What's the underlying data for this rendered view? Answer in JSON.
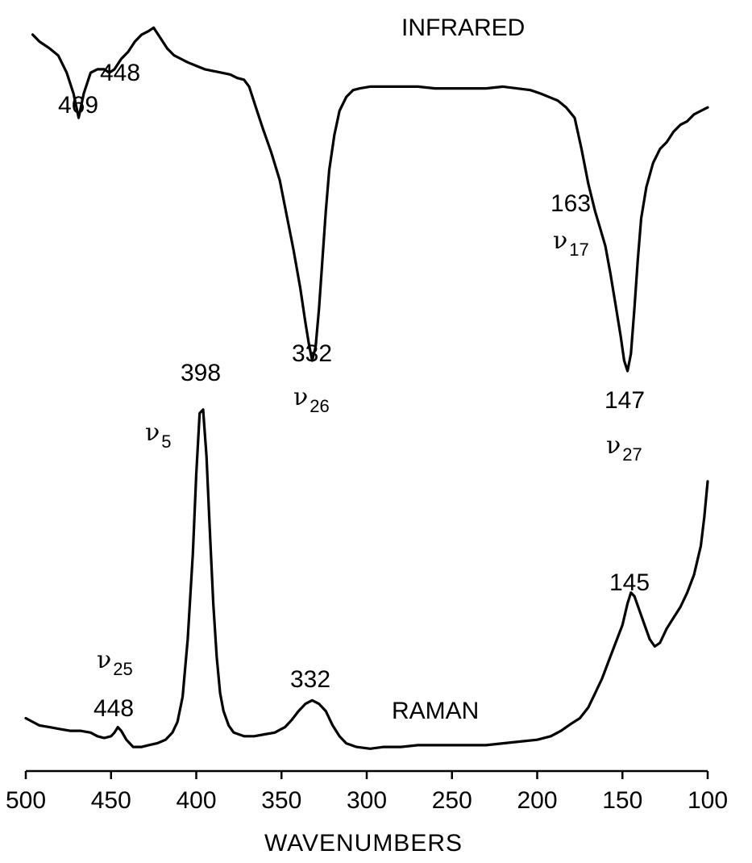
{
  "chart_data": {
    "type": "line",
    "title": "",
    "xlabel": "WAVENUMBERS",
    "ylabel": "",
    "xlim": [
      500,
      100
    ],
    "x_reversed": true,
    "grid": false,
    "x_ticks": [
      500,
      450,
      400,
      350,
      300,
      250,
      200,
      150,
      100
    ],
    "x_tick_labels": [
      "500",
      "450",
      "400",
      "350",
      "300",
      "250",
      "200",
      "150",
      "100"
    ],
    "series": [
      {
        "name": "INFRARED",
        "y_range": [
          0,
          1
        ],
        "note": "transmission trace, dips are absorption bands",
        "points": [
          [
            496,
            0.97
          ],
          [
            492,
            0.95
          ],
          [
            486,
            0.93
          ],
          [
            481,
            0.91
          ],
          [
            476,
            0.86
          ],
          [
            472,
            0.8
          ],
          [
            469,
            0.73
          ],
          [
            466,
            0.8
          ],
          [
            462,
            0.86
          ],
          [
            458,
            0.87
          ],
          [
            454,
            0.87
          ],
          [
            451,
            0.86
          ],
          [
            448,
            0.87
          ],
          [
            444,
            0.9
          ],
          [
            440,
            0.92
          ],
          [
            436,
            0.95
          ],
          [
            432,
            0.97
          ],
          [
            428,
            0.98
          ],
          [
            425,
            0.99
          ],
          [
            421,
            0.96
          ],
          [
            417,
            0.93
          ],
          [
            413,
            0.91
          ],
          [
            409,
            0.9
          ],
          [
            405,
            0.89
          ],
          [
            400,
            0.88
          ],
          [
            395,
            0.87
          ],
          [
            390,
            0.865
          ],
          [
            385,
            0.86
          ],
          [
            380,
            0.855
          ],
          [
            376,
            0.845
          ],
          [
            372,
            0.84
          ],
          [
            369,
            0.82
          ],
          [
            365,
            0.76
          ],
          [
            361,
            0.7
          ],
          [
            356,
            0.63
          ],
          [
            351,
            0.55
          ],
          [
            347,
            0.45
          ],
          [
            343,
            0.35
          ],
          [
            339,
            0.24
          ],
          [
            336,
            0.14
          ],
          [
            334,
            0.08
          ],
          [
            332,
            0.03
          ],
          [
            330,
            0.07
          ],
          [
            328,
            0.18
          ],
          [
            326,
            0.32
          ],
          [
            324,
            0.46
          ],
          [
            322,
            0.58
          ],
          [
            319,
            0.68
          ],
          [
            316,
            0.75
          ],
          [
            312,
            0.79
          ],
          [
            308,
            0.81
          ],
          [
            304,
            0.815
          ],
          [
            298,
            0.82
          ],
          [
            290,
            0.82
          ],
          [
            280,
            0.82
          ],
          [
            270,
            0.82
          ],
          [
            260,
            0.815
          ],
          [
            250,
            0.815
          ],
          [
            240,
            0.815
          ],
          [
            230,
            0.815
          ],
          [
            220,
            0.82
          ],
          [
            212,
            0.815
          ],
          [
            204,
            0.81
          ],
          [
            198,
            0.8
          ],
          [
            193,
            0.79
          ],
          [
            188,
            0.78
          ],
          [
            183,
            0.76
          ],
          [
            178,
            0.73
          ],
          [
            174,
            0.64
          ],
          [
            170,
            0.54
          ],
          [
            166,
            0.46
          ],
          [
            163,
            0.41
          ],
          [
            160,
            0.36
          ],
          [
            157,
            0.28
          ],
          [
            154,
            0.19
          ],
          [
            151,
            0.1
          ],
          [
            149,
            0.03
          ],
          [
            147,
            0.0
          ],
          [
            145,
            0.05
          ],
          [
            143,
            0.18
          ],
          [
            141,
            0.32
          ],
          [
            139,
            0.44
          ],
          [
            136,
            0.53
          ],
          [
            132,
            0.6
          ],
          [
            128,
            0.64
          ],
          [
            124,
            0.66
          ],
          [
            120,
            0.69
          ],
          [
            116,
            0.71
          ],
          [
            112,
            0.72
          ],
          [
            108,
            0.74
          ],
          [
            104,
            0.75
          ],
          [
            100,
            0.76
          ]
        ]
      },
      {
        "name": "RAMAN",
        "y_range": [
          0,
          1
        ],
        "note": "scattering intensity trace, peaks are Raman bands",
        "points": [
          [
            500,
            0.1
          ],
          [
            496,
            0.09
          ],
          [
            492,
            0.08
          ],
          [
            486,
            0.075
          ],
          [
            480,
            0.07
          ],
          [
            474,
            0.065
          ],
          [
            468,
            0.065
          ],
          [
            462,
            0.06
          ],
          [
            458,
            0.05
          ],
          [
            454,
            0.045
          ],
          [
            450,
            0.05
          ],
          [
            448,
            0.06
          ],
          [
            446,
            0.075
          ],
          [
            444,
            0.065
          ],
          [
            441,
            0.04
          ],
          [
            437,
            0.02
          ],
          [
            432,
            0.02
          ],
          [
            428,
            0.025
          ],
          [
            423,
            0.03
          ],
          [
            418,
            0.04
          ],
          [
            414,
            0.06
          ],
          [
            411,
            0.09
          ],
          [
            408,
            0.16
          ],
          [
            405,
            0.32
          ],
          [
            402,
            0.56
          ],
          [
            400,
            0.78
          ],
          [
            398,
            0.95
          ],
          [
            396,
            0.96
          ],
          [
            394,
            0.83
          ],
          [
            392,
            0.62
          ],
          [
            390,
            0.42
          ],
          [
            388,
            0.27
          ],
          [
            386,
            0.17
          ],
          [
            384,
            0.12
          ],
          [
            381,
            0.08
          ],
          [
            378,
            0.06
          ],
          [
            372,
            0.05
          ],
          [
            366,
            0.05
          ],
          [
            360,
            0.055
          ],
          [
            354,
            0.06
          ],
          [
            348,
            0.075
          ],
          [
            344,
            0.095
          ],
          [
            340,
            0.12
          ],
          [
            336,
            0.14
          ],
          [
            332,
            0.15
          ],
          [
            328,
            0.14
          ],
          [
            324,
            0.12
          ],
          [
            320,
            0.08
          ],
          [
            316,
            0.05
          ],
          [
            312,
            0.03
          ],
          [
            306,
            0.02
          ],
          [
            298,
            0.015
          ],
          [
            290,
            0.02
          ],
          [
            280,
            0.02
          ],
          [
            270,
            0.025
          ],
          [
            260,
            0.025
          ],
          [
            250,
            0.025
          ],
          [
            240,
            0.025
          ],
          [
            230,
            0.025
          ],
          [
            220,
            0.03
          ],
          [
            210,
            0.035
          ],
          [
            200,
            0.04
          ],
          [
            192,
            0.05
          ],
          [
            186,
            0.065
          ],
          [
            180,
            0.085
          ],
          [
            175,
            0.1
          ],
          [
            170,
            0.13
          ],
          [
            166,
            0.17
          ],
          [
            162,
            0.21
          ],
          [
            158,
            0.26
          ],
          [
            154,
            0.31
          ],
          [
            150,
            0.36
          ],
          [
            147,
            0.42
          ],
          [
            145,
            0.45
          ],
          [
            143,
            0.44
          ],
          [
            140,
            0.4
          ],
          [
            137,
            0.36
          ],
          [
            134,
            0.32
          ],
          [
            131,
            0.3
          ],
          [
            128,
            0.31
          ],
          [
            124,
            0.35
          ],
          [
            120,
            0.38
          ],
          [
            116,
            0.41
          ],
          [
            112,
            0.45
          ],
          [
            108,
            0.5
          ],
          [
            104,
            0.58
          ],
          [
            102,
            0.66
          ],
          [
            100,
            0.76
          ]
        ]
      }
    ],
    "annotations": [
      {
        "id": "ir-469",
        "text": "469",
        "series": "INFRARED"
      },
      {
        "id": "ir-448",
        "text": "448",
        "series": "INFRARED"
      },
      {
        "id": "ir-332",
        "text": "332",
        "series": "INFRARED"
      },
      {
        "id": "ir-nu26",
        "text": "ν",
        "sub": "26",
        "series": "INFRARED"
      },
      {
        "id": "ir-163",
        "text": "163",
        "series": "INFRARED"
      },
      {
        "id": "ir-nu17",
        "text": "ν",
        "sub": "17",
        "series": "INFRARED"
      },
      {
        "id": "ir-147",
        "text": "147",
        "series": "INFRARED"
      },
      {
        "id": "ir-nu27",
        "text": "ν",
        "sub": "27",
        "series": "INFRARED"
      },
      {
        "id": "ra-398",
        "text": "398",
        "series": "RAMAN"
      },
      {
        "id": "ra-nu5",
        "text": "ν",
        "sub": "5",
        "series": "RAMAN"
      },
      {
        "id": "ra-nu25",
        "text": "ν",
        "sub": "25",
        "series": "RAMAN"
      },
      {
        "id": "ra-448",
        "text": "448",
        "series": "RAMAN"
      },
      {
        "id": "ra-332",
        "text": "332",
        "series": "RAMAN"
      },
      {
        "id": "ra-145",
        "text": "145",
        "series": "RAMAN"
      }
    ]
  }
}
